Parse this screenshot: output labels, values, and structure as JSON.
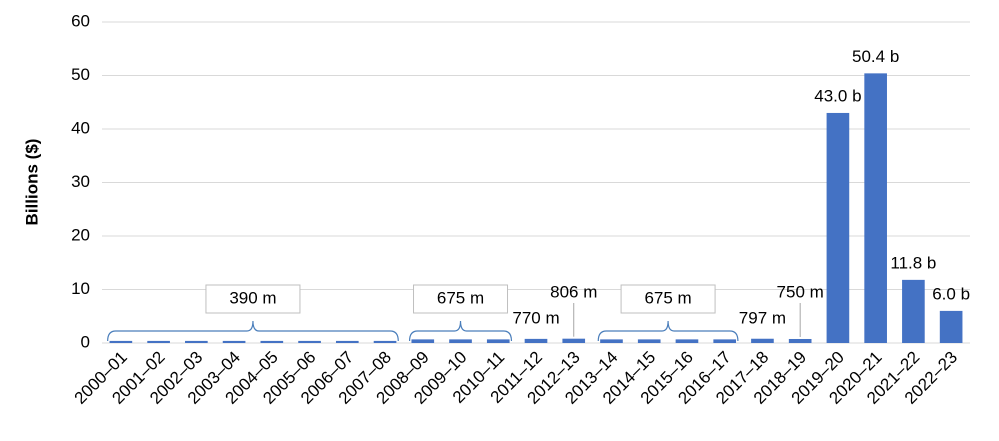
{
  "chart_data": {
    "type": "bar",
    "y_axis_label": "Billions ($)",
    "categories": [
      "2000–01",
      "2001–02",
      "2002–03",
      "2003–04",
      "2004–05",
      "2005–06",
      "2006–07",
      "2007–08",
      "2008–09",
      "2009–10",
      "2010–11",
      "2011–12",
      "2012–13",
      "2013–14",
      "2014–15",
      "2015–16",
      "2016–17",
      "2017–18",
      "2018–19",
      "2019–20",
      "2020–21",
      "2021–22",
      "2022–23"
    ],
    "values": [
      0.39,
      0.39,
      0.39,
      0.39,
      0.39,
      0.39,
      0.39,
      0.39,
      0.675,
      0.675,
      0.675,
      0.77,
      0.806,
      0.675,
      0.675,
      0.675,
      0.675,
      0.797,
      0.75,
      43.0,
      50.4,
      11.8,
      6.0
    ],
    "value_labels": [
      "390 m",
      null,
      null,
      null,
      null,
      null,
      null,
      null,
      "675 m",
      null,
      null,
      "770 m",
      "806 m",
      "675 m",
      null,
      null,
      null,
      "797 m",
      "750 m",
      "43.0 b",
      "50.4 b",
      "11.8 b",
      "6.0 b"
    ],
    "color": "#4472c4",
    "ylim": [
      0,
      60
    ],
    "yticks": [
      0,
      10,
      20,
      30,
      40,
      50,
      60
    ],
    "grid": true
  }
}
